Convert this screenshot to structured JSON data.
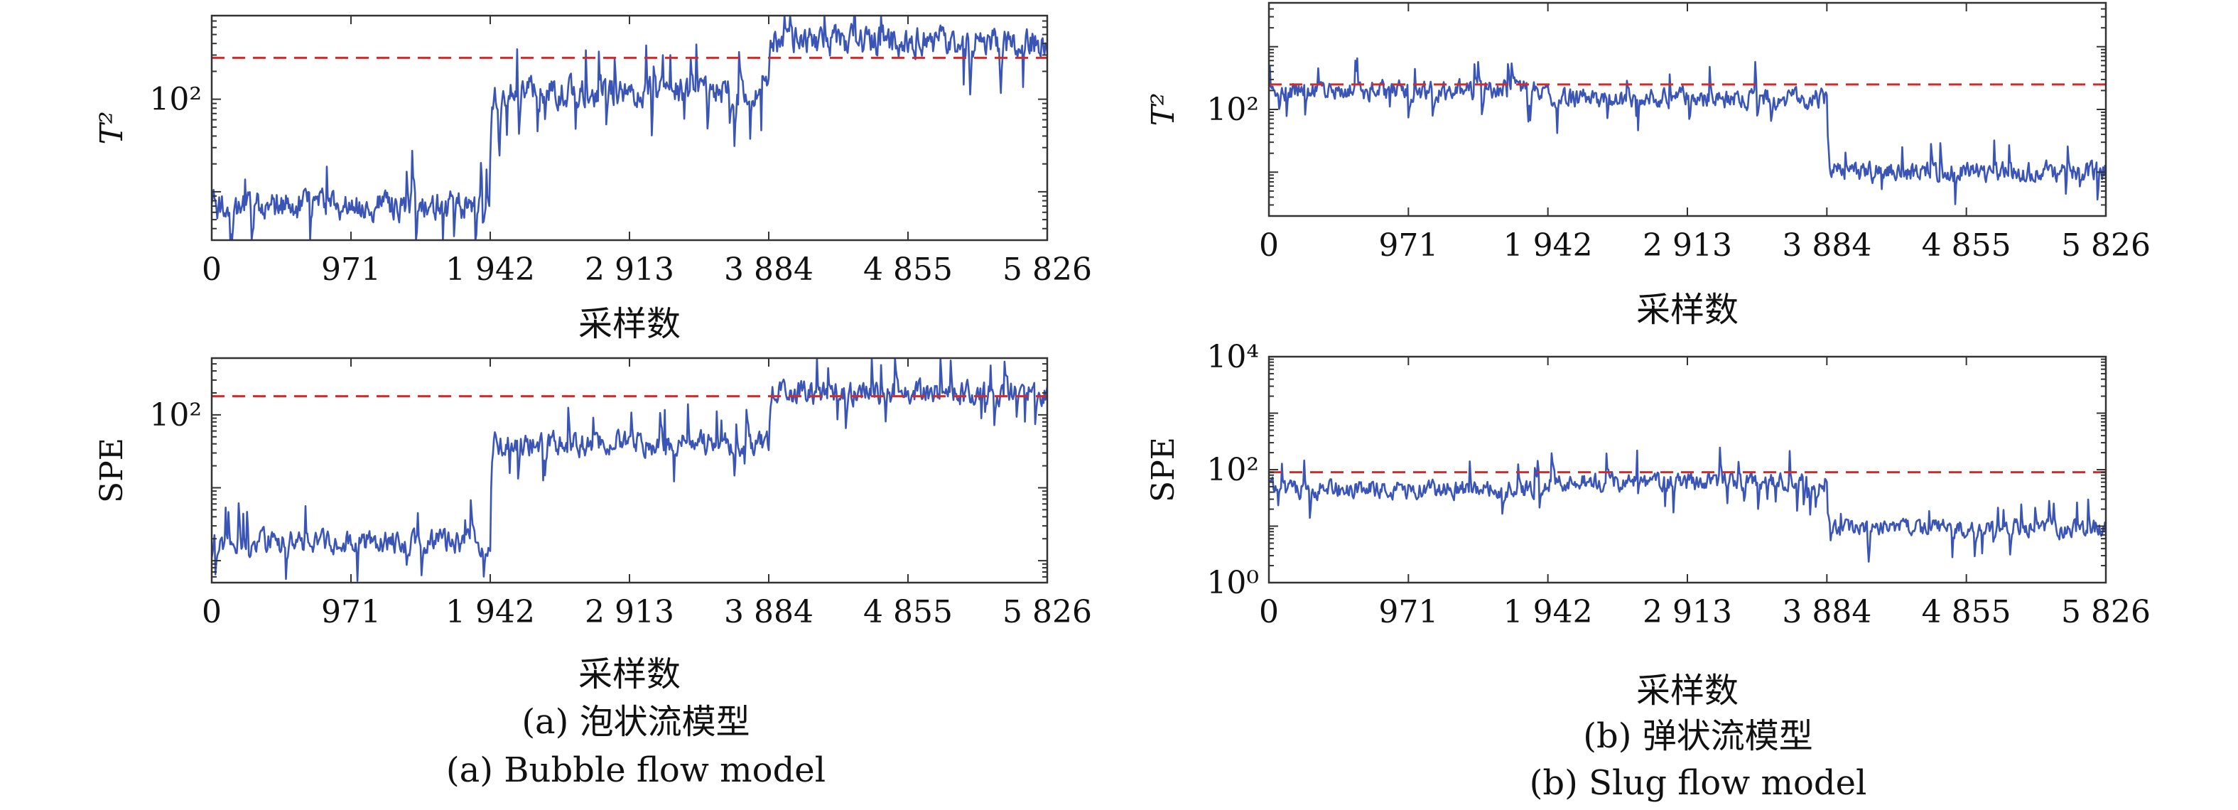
{
  "chart_data": [
    {
      "type": "line",
      "panel": "a-top",
      "ylabel": "T²",
      "xlabel": "采样数",
      "xlim": [
        0,
        5826
      ],
      "xticks": [
        0,
        971,
        1942,
        2913,
        3884,
        4855,
        5826
      ],
      "xtick_labels": [
        "0",
        "971",
        "1 942",
        "2 913",
        "3 884",
        "4 855",
        "5 826"
      ],
      "ylog": true,
      "ylim": [
        3,
        800
      ],
      "yticks": [
        100
      ],
      "ytick_labels": [
        "10²"
      ],
      "threshold": 280,
      "series": [
        {
          "segments": [
            [
              0,
              1942,
              7
            ],
            [
              1942,
              3884,
              120
            ],
            [
              3884,
              5826,
              420
            ]
          ]
        }
      ],
      "colors": {
        "series": "#3a55b5",
        "threshold": "#d42a2a"
      }
    },
    {
      "type": "line",
      "panel": "a-bottom",
      "ylabel": "SPE",
      "xlabel": "采样数",
      "xlim": [
        0,
        5826
      ],
      "xticks": [
        0,
        971,
        1942,
        2913,
        3884,
        4855,
        5826
      ],
      "xtick_labels": [
        "0",
        "971",
        "1 942",
        "2 913",
        "3 884",
        "4 855",
        "5 826"
      ],
      "ylog": true,
      "ylim": [
        0.5,
        600
      ],
      "yticks": [
        100
      ],
      "ytick_labels": [
        "10²"
      ],
      "threshold": 180,
      "series": [
        {
          "segments": [
            [
              0,
              1942,
              1.8
            ],
            [
              1942,
              3884,
              40
            ],
            [
              3884,
              5826,
              200
            ]
          ]
        }
      ],
      "colors": {
        "series": "#3a55b5",
        "threshold": "#d42a2a"
      }
    },
    {
      "type": "line",
      "panel": "b-top",
      "ylabel": "T²",
      "xlabel": "采样数",
      "xlim": [
        0,
        5826
      ],
      "xticks": [
        0,
        971,
        1942,
        2913,
        3884,
        4855,
        5826
      ],
      "xtick_labels": [
        "0",
        "971",
        "1 942",
        "2 913",
        "3 884",
        "4 855",
        "5 826"
      ],
      "ylog": true,
      "ylim": [
        2,
        5000
      ],
      "yticks": [
        100
      ],
      "ytick_labels": [
        "10²"
      ],
      "threshold": 250,
      "series": [
        {
          "segments": [
            [
              0,
              1942,
              200
            ],
            [
              1942,
              3884,
              150
            ],
            [
              3884,
              5826,
              10
            ]
          ]
        }
      ],
      "colors": {
        "series": "#3a55b5",
        "threshold": "#d42a2a"
      }
    },
    {
      "type": "line",
      "panel": "b-bottom",
      "ylabel": "SPE",
      "xlabel": "采样数",
      "xlim": [
        0,
        5826
      ],
      "xticks": [
        0,
        971,
        1942,
        2913,
        3884,
        4855,
        5826
      ],
      "xtick_labels": [
        "0",
        "971",
        "1 942",
        "2 913",
        "3 884",
        "4 855",
        "5 826"
      ],
      "ylog": true,
      "ylim": [
        1,
        10000
      ],
      "yticks": [
        1,
        100,
        10000
      ],
      "ytick_labels": [
        "10⁰",
        "10²",
        "10⁴"
      ],
      "threshold": 90,
      "series": [
        {
          "segments": [
            [
              0,
              1942,
              45
            ],
            [
              1942,
              3884,
              60
            ],
            [
              3884,
              5826,
              9
            ]
          ]
        }
      ],
      "colors": {
        "series": "#3a55b5",
        "threshold": "#d42a2a"
      }
    }
  ],
  "captions": {
    "a_cn": "(a) 泡状流模型",
    "a_en": "(a) Bubble flow model",
    "b_cn": "(b) 弹状流模型",
    "b_en": "(b) Slug flow model"
  }
}
